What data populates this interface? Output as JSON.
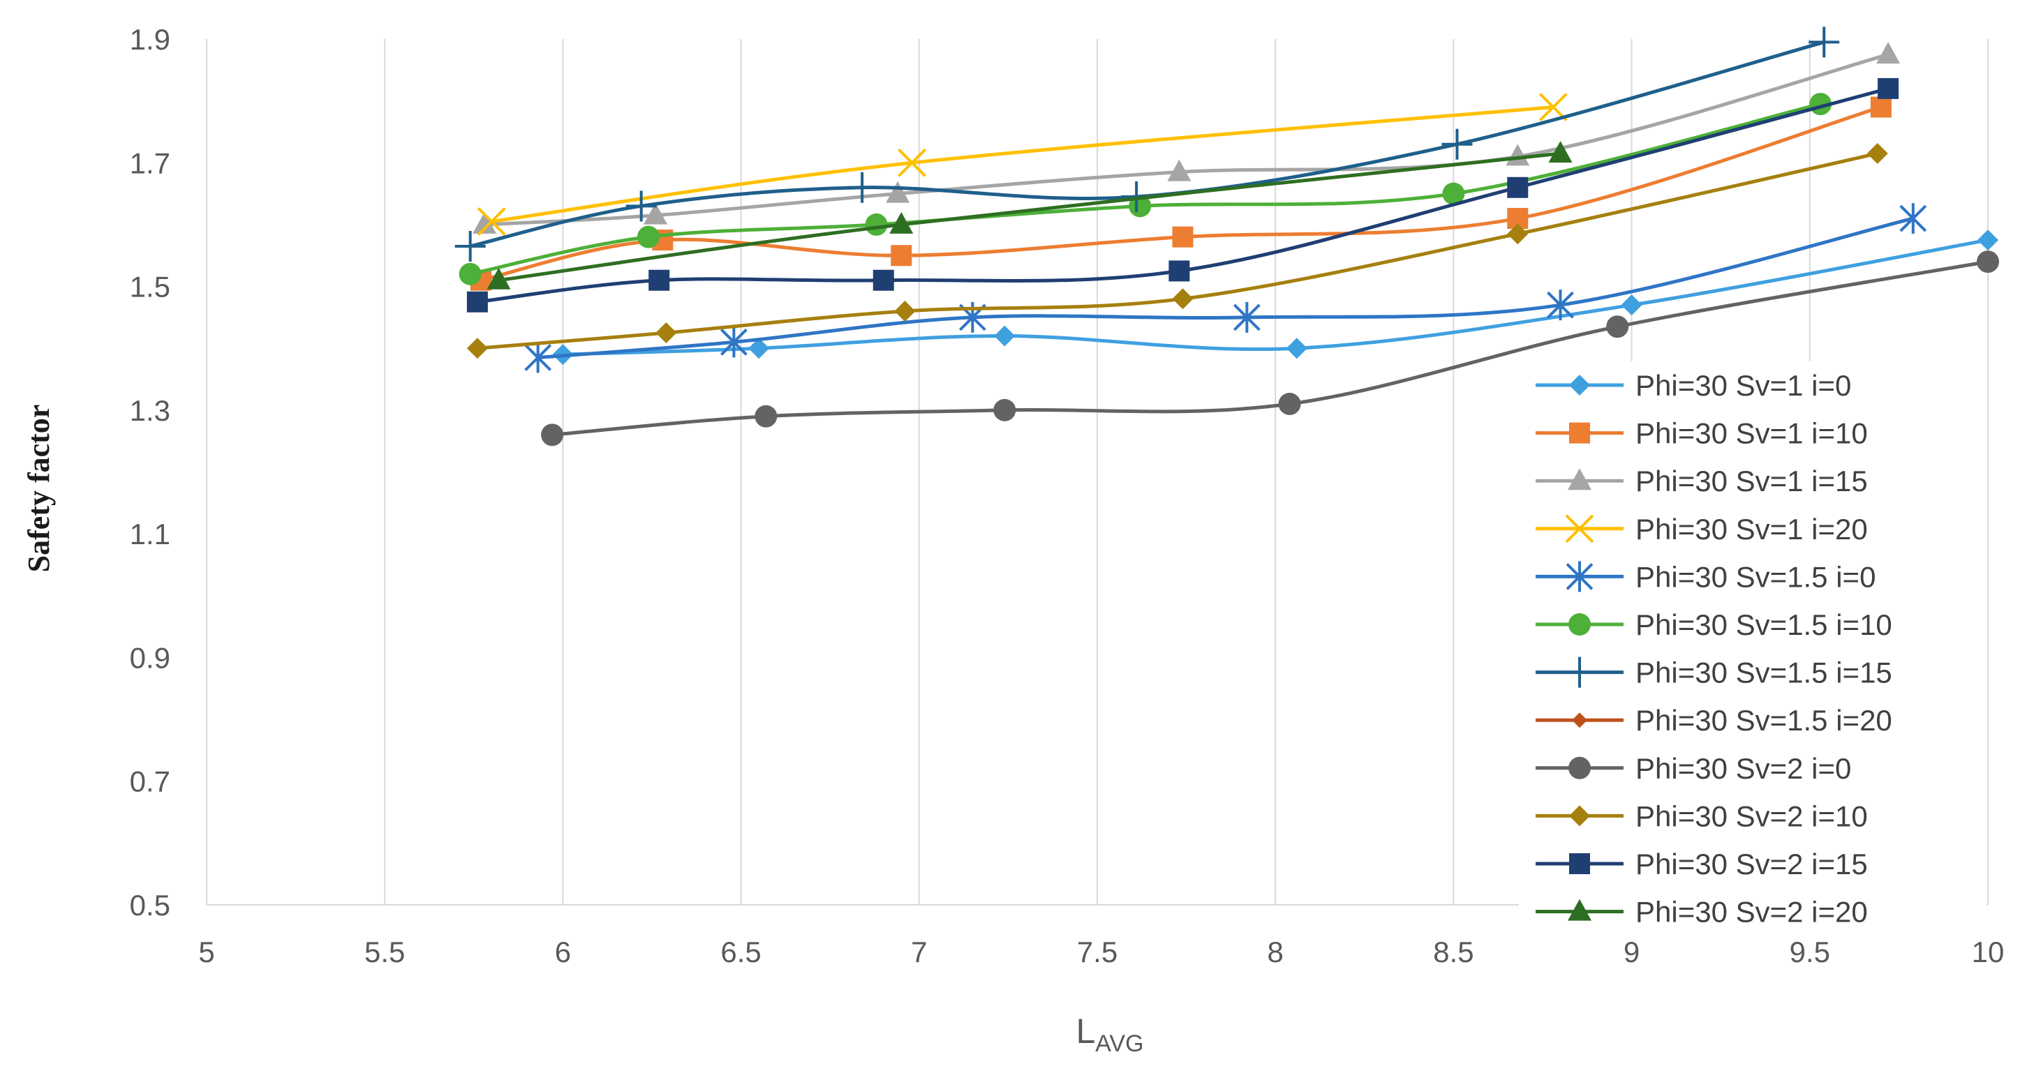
{
  "chart_data": {
    "type": "line",
    "title": "",
    "xlabel": "L",
    "xlabel_sub": "AVG",
    "ylabel": "Safety factor",
    "xlim": [
      5,
      10
    ],
    "ylim": [
      0.5,
      1.9
    ],
    "xticks": [
      5,
      5.5,
      6,
      6.5,
      7,
      7.5,
      8,
      8.5,
      9,
      9.5,
      10
    ],
    "xtick_labels": [
      "5",
      "5.5",
      "6",
      "6.5",
      "7",
      "7.5",
      "8",
      "8.5",
      "9",
      "9.5",
      "10"
    ],
    "yticks": [
      0.5,
      0.7,
      0.9,
      1.1,
      1.3,
      1.5,
      1.7,
      1.9
    ],
    "ytick_labels": [
      "0.5",
      "0.7",
      "0.9",
      "1.1",
      "1.3",
      "1.5",
      "1.7",
      "1.9"
    ],
    "grid": "vertical",
    "legend_position": "bottom-right",
    "series": [
      {
        "name": "Phi=30 Sv=1 i=0",
        "color": "#3fa0e0",
        "marker": "diamond",
        "x": [
          6.0,
          6.55,
          7.24,
          8.06,
          9.0,
          10.0
        ],
        "y": [
          1.39,
          1.4,
          1.42,
          1.4,
          1.47,
          1.575
        ]
      },
      {
        "name": "Phi=30 Sv=1 i=10",
        "color": "#ed7d31",
        "marker": "square",
        "x": [
          5.77,
          6.28,
          6.95,
          7.74,
          8.68,
          9.7
        ],
        "y": [
          1.51,
          1.575,
          1.55,
          1.58,
          1.61,
          1.79
        ]
      },
      {
        "name": "Phi=30 Sv=1 i=15",
        "color": "#a5a5a5",
        "marker": "triangle",
        "x": [
          5.78,
          6.26,
          6.94,
          7.73,
          8.68,
          9.72
        ],
        "y": [
          1.6,
          1.615,
          1.65,
          1.685,
          1.71,
          1.875
        ]
      },
      {
        "name": "Phi=30 Sv=1 i=20",
        "color": "#ffc000",
        "marker": "x",
        "x": [
          5.8,
          6.98,
          8.78
        ],
        "y": [
          1.605,
          1.7,
          1.79
        ]
      },
      {
        "name": "Phi=30 Sv=1.5 i=0",
        "color": "#2f75c5",
        "marker": "asterisk",
        "x": [
          5.93,
          6.48,
          7.15,
          7.92,
          8.8,
          9.79
        ],
        "y": [
          1.385,
          1.41,
          1.45,
          1.45,
          1.47,
          1.61
        ]
      },
      {
        "name": "Phi=30 Sv=1.5 i=10",
        "color": "#4db038",
        "marker": "circle",
        "x": [
          5.74,
          6.24,
          6.88,
          7.62,
          8.5,
          9.53
        ],
        "y": [
          1.52,
          1.58,
          1.6,
          1.63,
          1.65,
          1.795
        ]
      },
      {
        "name": "Phi=30 Sv=1.5 i=15",
        "color": "#1f5f8b",
        "marker": "plus",
        "x": [
          5.74,
          6.22,
          6.84,
          7.61,
          8.51,
          9.54
        ],
        "y": [
          1.565,
          1.63,
          1.66,
          1.645,
          1.73,
          1.895
        ]
      },
      {
        "name": "Phi=30 Sv=1.5 i=20",
        "color": "#c0501a",
        "marker": "diamond-small",
        "x": [],
        "y": []
      },
      {
        "name": "Phi=30 Sv=2 i=0",
        "color": "#636363",
        "marker": "circle",
        "x": [
          5.97,
          6.57,
          7.24,
          8.04,
          8.96,
          10.0
        ],
        "y": [
          1.26,
          1.29,
          1.3,
          1.31,
          1.435,
          1.54
        ]
      },
      {
        "name": "Phi=30 Sv=2 i=10",
        "color": "#a6800e",
        "marker": "diamond",
        "x": [
          5.76,
          6.29,
          6.96,
          7.74,
          8.68,
          9.69
        ],
        "y": [
          1.4,
          1.425,
          1.46,
          1.48,
          1.585,
          1.715
        ]
      },
      {
        "name": "Phi=30 Sv=2 i=15",
        "color": "#1f3f73",
        "marker": "square",
        "x": [
          5.76,
          6.27,
          6.9,
          7.73,
          8.68,
          9.72
        ],
        "y": [
          1.475,
          1.51,
          1.51,
          1.525,
          1.66,
          1.82
        ]
      },
      {
        "name": "Phi=30 Sv=2 i=20",
        "color": "#2e6e22",
        "marker": "triangle",
        "x": [
          5.82,
          6.95,
          8.8
        ],
        "y": [
          1.51,
          1.6,
          1.715
        ]
      }
    ]
  }
}
